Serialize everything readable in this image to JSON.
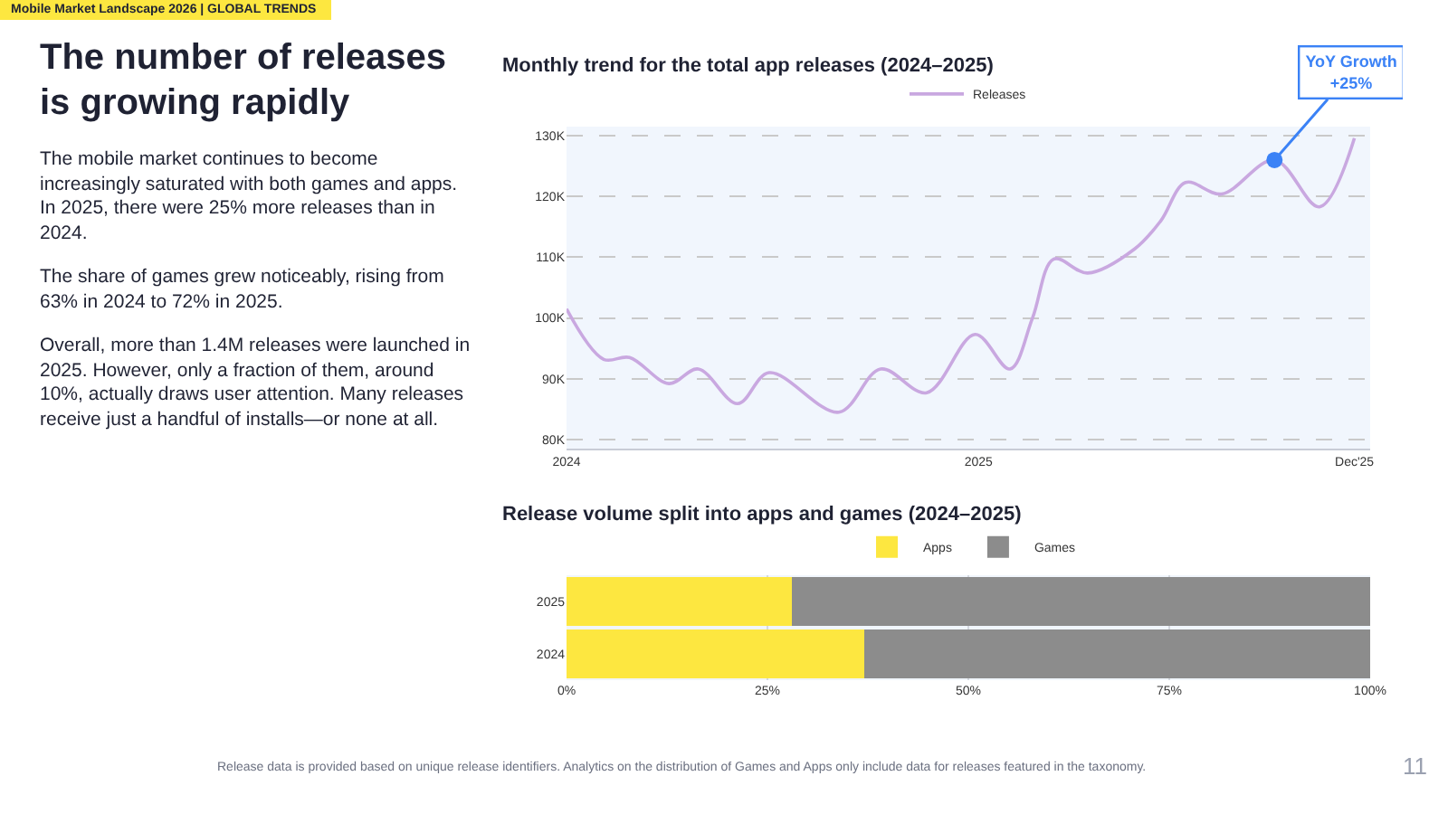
{
  "chart_data": [
    {
      "type": "other",
      "title": "The number of releases\nis growing rapidly",
      "annotations": [
        "Mobile Market Landscape 2026 | GLOBAL TRENDS",
        "The mobile market continues to become increasingly saturated with both games and apps. In 2025, there were 25% more releases than in 2024.",
        "The share of games grew noticeably, rising from 63% in 2024 to 72% in 2025.",
        "Overall, more than 1.4M releases were launched in 2025. However, only a fraction of them, around 10%, actually draws user attention. Many releases receive just a handful of installs—or none at all.",
        "Release data is provided based on unique release identifiers. Analytics on the distribution of Games and Apps only include data for releases featured in the taxonomy.",
        "11"
      ]
    },
    {
      "type": "line",
      "title": "Monthly trend for the total app releases (2024–2025)",
      "series": [
        {
          "name": "Releases",
          "color": "#c9a8e0",
          "x": [
            "2024-01-01",
            "2024-02-03",
            "2024-02-26",
            "2024-04-01",
            "2024-04-27",
            "2024-06-01",
            "2024-06-29",
            "2024-08-30",
            "2024-10-06",
            "2024-11-16",
            "2024-12-29",
            "2025-01-29",
            "2025-02-18",
            "2025-03-09",
            "2025-04-08",
            "2025-05-20",
            "2025-06-12",
            "2025-07-04",
            "2025-08-05",
            "2025-09-21",
            "2025-10-31",
            "2025-12-01"
          ],
          "values": [
            101.5,
            93.2,
            93.5,
            89.2,
            91.6,
            85.9,
            91.0,
            84.5,
            91.6,
            87.7,
            97.3,
            91.6,
            100.0,
            109.7,
            107.4,
            111.4,
            116.0,
            122.3,
            120.4,
            126.0,
            118.3,
            129.6
          ]
        },
        {
          "type": "scatter",
          "color": "#3b82f6",
          "marker": "circle",
          "x": [
            "2025-09-21"
          ],
          "values": [
            126.0
          ]
        }
      ],
      "annotations": [
        {
          "text": "YoY Growth\n+25%",
          "x": "2025-09-21",
          "y": 126.0
        }
      ],
      "xlim": [
        "2024-01-01",
        "2025-12-15"
      ],
      "xticks": [
        {
          "value": "2024-01-01",
          "label": "2024"
        },
        {
          "value": "2025-01-01",
          "label": "2025"
        },
        {
          "value": "2025-12-01",
          "label": "Dec'25"
        }
      ],
      "ylim": [
        78.5,
        131.5
      ],
      "yticks": [
        {
          "value": 80,
          "label": "80K"
        },
        {
          "value": 90,
          "label": "90K"
        },
        {
          "value": 100,
          "label": "100K"
        },
        {
          "value": 110,
          "label": "110K"
        },
        {
          "value": 120,
          "label": "120K"
        },
        {
          "value": 130,
          "label": "130K"
        }
      ],
      "grid": "y",
      "legend": "top",
      "line_style": "solid"
    },
    {
      "type": "bar",
      "title": "Release volume split into apps and games (2024–2025)",
      "orientation": "horizontal",
      "stacked": true,
      "categories": [
        "2025",
        "2024"
      ],
      "series": [
        {
          "name": "Apps",
          "color": "#fde740",
          "values": [
            28,
            37
          ]
        },
        {
          "name": "Games",
          "color": "#8c8c8c",
          "values": [
            72,
            63
          ]
        }
      ],
      "xlim": [
        0,
        100
      ],
      "xticks": [
        {
          "value": 0,
          "label": "0%"
        },
        {
          "value": 25,
          "label": "25%"
        },
        {
          "value": 50,
          "label": "50%"
        },
        {
          "value": 75,
          "label": "75%"
        },
        {
          "value": 100,
          "label": "100%"
        }
      ],
      "grid": "x",
      "legend": "top"
    }
  ]
}
